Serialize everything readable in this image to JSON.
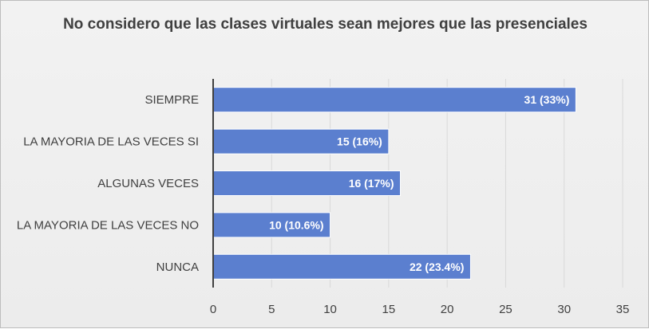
{
  "chart_data": {
    "type": "bar",
    "orientation": "horizontal",
    "title": "No considero que las clases virtuales sean mejores que las presenciales",
    "categories": [
      "SIEMPRE",
      "LA MAYORIA DE LAS VECES SI",
      "ALGUNAS VECES",
      "LA MAYORIA DE LAS VECES NO",
      "NUNCA"
    ],
    "values": [
      31,
      15,
      16,
      10,
      22
    ],
    "data_labels": [
      "31 (33%)",
      "15 (16%)",
      "16 (17%)",
      "10 (10.6%)",
      "22 (23.4%)"
    ],
    "x_ticks": [
      0,
      5,
      10,
      15,
      20,
      25,
      30,
      35
    ],
    "xlim": [
      0,
      35
    ],
    "xlabel": "",
    "ylabel": "",
    "grid": true,
    "legend": "none",
    "colors": {
      "bar": "#5b7fcf",
      "bar_border": "#ffffff",
      "grid": "#d9d9d9",
      "axis": "#404040",
      "background": "#f2f2f2"
    }
  }
}
